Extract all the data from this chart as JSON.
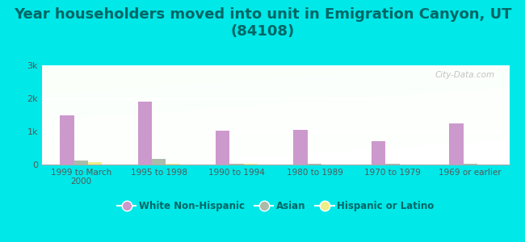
{
  "title": "Year householders moved into unit in Emigration Canyon, UT\n(84108)",
  "categories": [
    "1999 to March\n2000",
    "1995 to 1998",
    "1990 to 1994",
    "1980 to 1989",
    "1970 to 1979",
    "1969 or earlier"
  ],
  "white_non_hispanic": [
    1500,
    1900,
    1020,
    1050,
    700,
    1250
  ],
  "asian": [
    130,
    160,
    30,
    20,
    15,
    20
  ],
  "hispanic_or_latino": [
    80,
    20,
    18,
    12,
    10,
    10
  ],
  "bar_colors": {
    "white": "#cc99cc",
    "asian": "#aabbaa",
    "hispanic": "#eeee88"
  },
  "background_color": "#00e8e8",
  "ylim": [
    0,
    3000
  ],
  "yticks": [
    0,
    1000,
    2000,
    3000
  ],
  "ytick_labels": [
    "0",
    "1k",
    "2k",
    "3k"
  ],
  "title_fontsize": 13,
  "title_color": "#006666",
  "tick_color": "#555555",
  "watermark": "City-Data.com",
  "legend_labels": [
    "White Non-Hispanic",
    "Asian",
    "Hispanic or Latino"
  ]
}
